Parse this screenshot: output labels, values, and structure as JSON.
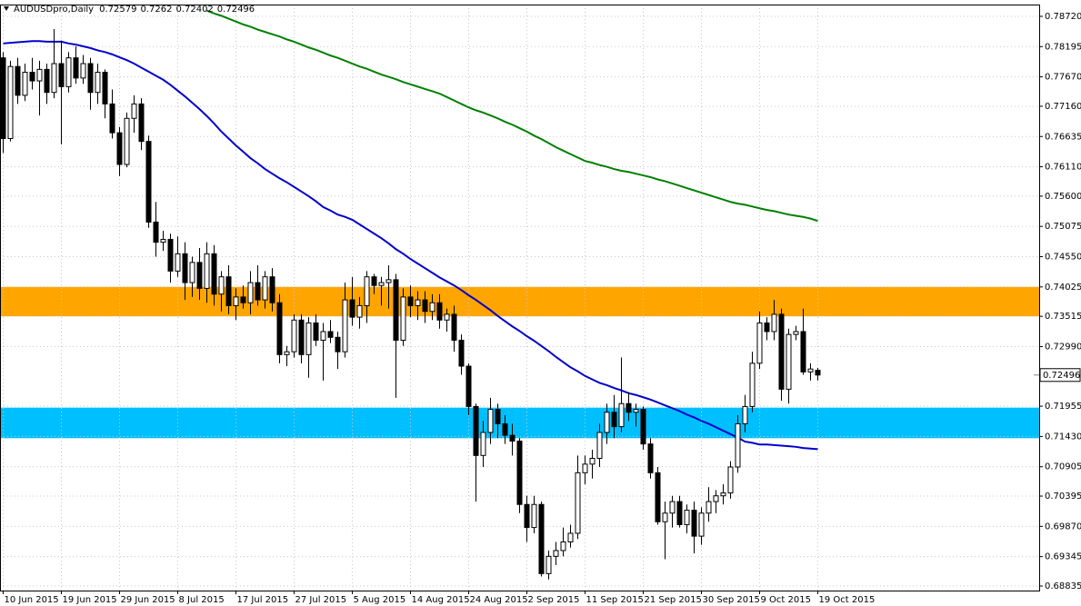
{
  "chart_data": {
    "type": "candlestick",
    "title": "AUDUSDpro,Daily",
    "categories": [
      "10 Jun 2015",
      null,
      null,
      null,
      null,
      null,
      null,
      null,
      "19 Jun 2015",
      null,
      null,
      null,
      null,
      null,
      null,
      null,
      "29 Jun 2015",
      null,
      null,
      null,
      null,
      null,
      null,
      null,
      "8 Jul 2015",
      null,
      null,
      null,
      null,
      null,
      null,
      null,
      "17 Jul 2015",
      null,
      null,
      null,
      null,
      null,
      null,
      null,
      "27 Jul 2015",
      null,
      null,
      null,
      null,
      null,
      null,
      null,
      "5 Aug 2015",
      null,
      null,
      null,
      null,
      null,
      null,
      null,
      "14 Aug 2015",
      null,
      null,
      null,
      null,
      null,
      null,
      null,
      "24 Aug 2015",
      null,
      null,
      null,
      null,
      null,
      null,
      null,
      "2 Sep 2015",
      null,
      null,
      null,
      null,
      null,
      null,
      null,
      "11 Sep 2015",
      null,
      null,
      null,
      null,
      null,
      null,
      null,
      "21 Sep 2015",
      null,
      null,
      null,
      null,
      null,
      null,
      null,
      "30 Sep 2015",
      null,
      null,
      null,
      null,
      null,
      null,
      null,
      "9 Oct 2015",
      null,
      null,
      null,
      null,
      null,
      null,
      null,
      "19 Oct 2015"
    ],
    "ohlc": [
      [
        0.78,
        0.781,
        0.7635,
        0.766
      ],
      [
        0.766,
        0.7795,
        0.7655,
        0.7785
      ],
      [
        0.7785,
        0.78,
        0.772,
        0.7735
      ],
      [
        0.7735,
        0.779,
        0.7725,
        0.7775
      ],
      [
        0.7775,
        0.78,
        0.7745,
        0.776
      ],
      [
        0.776,
        0.7795,
        0.77,
        0.778
      ],
      [
        0.778,
        0.779,
        0.772,
        0.774
      ],
      [
        0.774,
        0.785,
        0.773,
        0.779
      ],
      [
        0.779,
        0.783,
        0.765,
        0.775
      ],
      [
        0.775,
        0.781,
        0.774,
        0.78
      ],
      [
        0.78,
        0.782,
        0.7755,
        0.7765
      ],
      [
        0.7765,
        0.7805,
        0.7755,
        0.779
      ],
      [
        0.779,
        0.78,
        0.771,
        0.774
      ],
      [
        0.774,
        0.779,
        0.772,
        0.7775
      ],
      [
        0.7775,
        0.778,
        0.7695,
        0.772
      ],
      [
        0.772,
        0.7745,
        0.766,
        0.767
      ],
      [
        0.767,
        0.768,
        0.7595,
        0.7615
      ],
      [
        0.7615,
        0.7705,
        0.761,
        0.7695
      ],
      [
        0.7695,
        0.7735,
        0.767,
        0.772
      ],
      [
        0.772,
        0.773,
        0.764,
        0.7655
      ],
      [
        0.7655,
        0.7665,
        0.7505,
        0.7515
      ],
      [
        0.7515,
        0.755,
        0.7455,
        0.748
      ],
      [
        0.748,
        0.75,
        0.7465,
        0.7485
      ],
      [
        0.7485,
        0.7495,
        0.741,
        0.743
      ],
      [
        0.743,
        0.749,
        0.742,
        0.746
      ],
      [
        0.746,
        0.748,
        0.738,
        0.741
      ],
      [
        0.741,
        0.7455,
        0.7385,
        0.7445
      ],
      [
        0.7445,
        0.747,
        0.738,
        0.74
      ],
      [
        0.74,
        0.748,
        0.7375,
        0.746
      ],
      [
        0.746,
        0.7475,
        0.737,
        0.739
      ],
      [
        0.739,
        0.743,
        0.736,
        0.742
      ],
      [
        0.742,
        0.744,
        0.7355,
        0.737
      ],
      [
        0.737,
        0.74,
        0.7345,
        0.7385
      ],
      [
        0.7385,
        0.7405,
        0.7365,
        0.7375
      ],
      [
        0.7375,
        0.743,
        0.7355,
        0.741
      ],
      [
        0.741,
        0.744,
        0.737,
        0.738
      ],
      [
        0.738,
        0.743,
        0.7365,
        0.742
      ],
      [
        0.742,
        0.7435,
        0.736,
        0.7375
      ],
      [
        0.7375,
        0.739,
        0.727,
        0.7285
      ],
      [
        0.7285,
        0.73,
        0.7265,
        0.729
      ],
      [
        0.729,
        0.7355,
        0.728,
        0.7345
      ],
      [
        0.7345,
        0.7355,
        0.727,
        0.7285
      ],
      [
        0.7285,
        0.735,
        0.7245,
        0.734
      ],
      [
        0.734,
        0.7355,
        0.73,
        0.731
      ],
      [
        0.731,
        0.734,
        0.724,
        0.7325
      ],
      [
        0.7325,
        0.7345,
        0.7305,
        0.7315
      ],
      [
        0.7315,
        0.7325,
        0.726,
        0.729
      ],
      [
        0.729,
        0.741,
        0.728,
        0.738
      ],
      [
        0.738,
        0.742,
        0.7335,
        0.735
      ],
      [
        0.735,
        0.7385,
        0.733,
        0.737
      ],
      [
        0.737,
        0.743,
        0.734,
        0.742
      ],
      [
        0.742,
        0.7425,
        0.739,
        0.7405
      ],
      [
        0.7405,
        0.742,
        0.737,
        0.741
      ],
      [
        0.741,
        0.744,
        0.7365,
        0.7415
      ],
      [
        0.7415,
        0.7425,
        0.721,
        0.731
      ],
      [
        0.731,
        0.74,
        0.73,
        0.7385
      ],
      [
        0.7385,
        0.7405,
        0.735,
        0.737
      ],
      [
        0.737,
        0.7395,
        0.7345,
        0.738
      ],
      [
        0.738,
        0.7395,
        0.734,
        0.736
      ],
      [
        0.736,
        0.739,
        0.7345,
        0.7375
      ],
      [
        0.7375,
        0.739,
        0.733,
        0.7345
      ],
      [
        0.7345,
        0.7365,
        0.7325,
        0.7355
      ],
      [
        0.7355,
        0.737,
        0.729,
        0.731
      ],
      [
        0.731,
        0.732,
        0.725,
        0.7265
      ],
      [
        0.7265,
        0.727,
        0.718,
        0.7195
      ],
      [
        0.7195,
        0.72,
        0.703,
        0.711
      ],
      [
        0.711,
        0.717,
        0.709,
        0.715
      ],
      [
        0.715,
        0.721,
        0.713,
        0.719
      ],
      [
        0.719,
        0.72,
        0.714,
        0.7165
      ],
      [
        0.7165,
        0.718,
        0.713,
        0.7145
      ],
      [
        0.7145,
        0.7165,
        0.711,
        0.7135
      ],
      [
        0.7135,
        0.714,
        0.701,
        0.7025
      ],
      [
        0.7025,
        0.704,
        0.696,
        0.6985
      ],
      [
        0.6985,
        0.704,
        0.6975,
        0.7025
      ],
      [
        0.7025,
        0.703,
        0.69,
        0.6905
      ],
      [
        0.6905,
        0.6945,
        0.6895,
        0.6935
      ],
      [
        0.6935,
        0.696,
        0.692,
        0.6945
      ],
      [
        0.6945,
        0.6985,
        0.6935,
        0.696
      ],
      [
        0.696,
        0.699,
        0.695,
        0.6975
      ],
      [
        0.6975,
        0.711,
        0.6965,
        0.708
      ],
      [
        0.708,
        0.711,
        0.706,
        0.7095
      ],
      [
        0.7095,
        0.712,
        0.707,
        0.7105
      ],
      [
        0.7105,
        0.7165,
        0.709,
        0.715
      ],
      [
        0.715,
        0.72,
        0.713,
        0.7185
      ],
      [
        0.7185,
        0.7215,
        0.714,
        0.716
      ],
      [
        0.716,
        0.728,
        0.715,
        0.72
      ],
      [
        0.72,
        0.722,
        0.717,
        0.7185
      ],
      [
        0.7185,
        0.72,
        0.716,
        0.719
      ],
      [
        0.719,
        0.7195,
        0.712,
        0.713
      ],
      [
        0.713,
        0.714,
        0.707,
        0.708
      ],
      [
        0.708,
        0.709,
        0.699,
        0.6995
      ],
      [
        0.6995,
        0.703,
        0.693,
        0.701
      ],
      [
        0.701,
        0.704,
        0.6985,
        0.703
      ],
      [
        0.703,
        0.704,
        0.6985,
        0.699
      ],
      [
        0.699,
        0.7025,
        0.6975,
        0.7015
      ],
      [
        0.7015,
        0.703,
        0.694,
        0.697
      ],
      [
        0.697,
        0.702,
        0.6955,
        0.701
      ],
      [
        0.701,
        0.7055,
        0.6995,
        0.703
      ],
      [
        0.703,
        0.705,
        0.701,
        0.704
      ],
      [
        0.704,
        0.706,
        0.7025,
        0.7045
      ],
      [
        0.7045,
        0.71,
        0.7035,
        0.709
      ],
      [
        0.709,
        0.718,
        0.708,
        0.7165
      ],
      [
        0.7165,
        0.7215,
        0.715,
        0.7195
      ],
      [
        0.7195,
        0.729,
        0.7185,
        0.727
      ],
      [
        0.727,
        0.736,
        0.726,
        0.734
      ],
      [
        0.734,
        0.735,
        0.731,
        0.7325
      ],
      [
        0.7325,
        0.738,
        0.731,
        0.7355
      ],
      [
        0.7355,
        0.7365,
        0.7205,
        0.7225
      ],
      [
        0.7225,
        0.733,
        0.72,
        0.732
      ],
      [
        0.732,
        0.7335,
        0.731,
        0.7325
      ],
      [
        0.7325,
        0.7365,
        0.725,
        0.7255
      ],
      [
        0.7255,
        0.727,
        0.724,
        0.726
      ],
      [
        0.72579,
        0.7262,
        0.72402,
        0.72496
      ]
    ],
    "up_color": "#ffffff",
    "down_color": "#000000",
    "series": [
      {
        "color": "#0000cc",
        "values": [
          0.7825,
          0.7826,
          0.7827,
          0.7828,
          0.7829,
          0.7829,
          0.7828,
          0.7828,
          0.7828,
          0.7825,
          0.7823,
          0.782,
          0.7817,
          0.7813,
          0.781,
          0.7806,
          0.7801,
          0.7796,
          0.779,
          0.7783,
          0.7776,
          0.7769,
          0.7762,
          0.7753,
          0.7743,
          0.7733,
          0.7722,
          0.7711,
          0.7699,
          0.7686,
          0.7672,
          0.766,
          0.7648,
          0.7637,
          0.7626,
          0.7617,
          0.7607,
          0.7599,
          0.7591,
          0.7584,
          0.7576,
          0.7568,
          0.756,
          0.7551,
          0.7541,
          0.7535,
          0.7528,
          0.7524,
          0.7519,
          0.7511,
          0.7503,
          0.7495,
          0.7487,
          0.7478,
          0.7468,
          0.746,
          0.7451,
          0.7443,
          0.7435,
          0.7427,
          0.7419,
          0.7412,
          0.7405,
          0.7397,
          0.7388,
          0.738,
          0.7371,
          0.7362,
          0.7352,
          0.7343,
          0.7334,
          0.7326,
          0.7317,
          0.7309,
          0.73,
          0.7291,
          0.7281,
          0.7272,
          0.7263,
          0.7256,
          0.7248,
          0.7242,
          0.7236,
          0.7232,
          0.7227,
          0.7223,
          0.7218,
          0.7215,
          0.7211,
          0.7207,
          0.7202,
          0.7197,
          0.7192,
          0.7187,
          0.7181,
          0.7176,
          0.717,
          0.7165,
          0.7159,
          0.7153,
          0.7147,
          0.7141,
          0.7134,
          0.7132,
          0.7129,
          0.7129,
          0.7128,
          0.7127,
          0.7126,
          0.7125,
          0.7123,
          0.7122,
          0.7121
        ]
      },
      {
        "color": "#008000",
        "values": [
          null,
          null,
          null,
          null,
          null,
          null,
          null,
          null,
          null,
          null,
          null,
          null,
          null,
          null,
          null,
          null,
          null,
          null,
          null,
          null,
          null,
          null,
          null,
          null,
          null,
          null,
          null,
          null,
          0.7882,
          0.7877,
          0.7873,
          0.7868,
          0.7863,
          0.7858,
          0.7854,
          0.7849,
          0.7845,
          0.7841,
          0.7837,
          0.7832,
          0.7828,
          0.7823,
          0.7818,
          0.7814,
          0.7809,
          0.7804,
          0.78,
          0.7795,
          0.779,
          0.7785,
          0.7781,
          0.7776,
          0.7771,
          0.7767,
          0.7763,
          0.7758,
          0.7754,
          0.775,
          0.7746,
          0.7742,
          0.7738,
          0.7732,
          0.7726,
          0.772,
          0.7714,
          0.7709,
          0.7705,
          0.77,
          0.7695,
          0.7689,
          0.7684,
          0.7678,
          0.7672,
          0.7665,
          0.7659,
          0.7652,
          0.7645,
          0.7639,
          0.7633,
          0.7627,
          0.7621,
          0.7618,
          0.7614,
          0.7611,
          0.7607,
          0.7604,
          0.7602,
          0.7599,
          0.7596,
          0.7593,
          0.7589,
          0.7586,
          0.7582,
          0.7578,
          0.7574,
          0.757,
          0.7566,
          0.7562,
          0.7558,
          0.7554,
          0.755,
          0.7547,
          0.7545,
          0.7542,
          0.7539,
          0.7536,
          0.7534,
          0.7531,
          0.7528,
          0.7526,
          0.7524,
          0.7521,
          0.7517
        ]
      }
    ],
    "zones": [
      {
        "from": 0.74025,
        "to": 0.73515,
        "color": "#ffa500"
      },
      {
        "from": 0.7193,
        "to": 0.714,
        "color": "#00bfff"
      }
    ],
    "ylim": [
      0.68756,
      0.78925
    ],
    "yticks": [
      {
        "value": 0.7872,
        "label": "0.78720"
      },
      0.78195,
      {
        "value": 0.7767,
        "label": "0.77670"
      },
      {
        "value": 0.7716,
        "label": "0.77160"
      },
      0.76635,
      {
        "value": 0.7611,
        "label": "0.76110"
      },
      {
        "value": 0.756,
        "label": "0.75600"
      },
      0.75075,
      {
        "value": 0.7455,
        "label": "0.74550"
      },
      0.74025,
      0.73515,
      {
        "value": 0.7299,
        "label": "0.72990"
      },
      0.71955,
      {
        "value": 0.7143,
        "label": "0.71430"
      },
      0.70905,
      0.70395,
      {
        "value": 0.6987,
        "label": "0.69870"
      },
      0.69345,
      0.68835
    ],
    "grid": true
  }
}
